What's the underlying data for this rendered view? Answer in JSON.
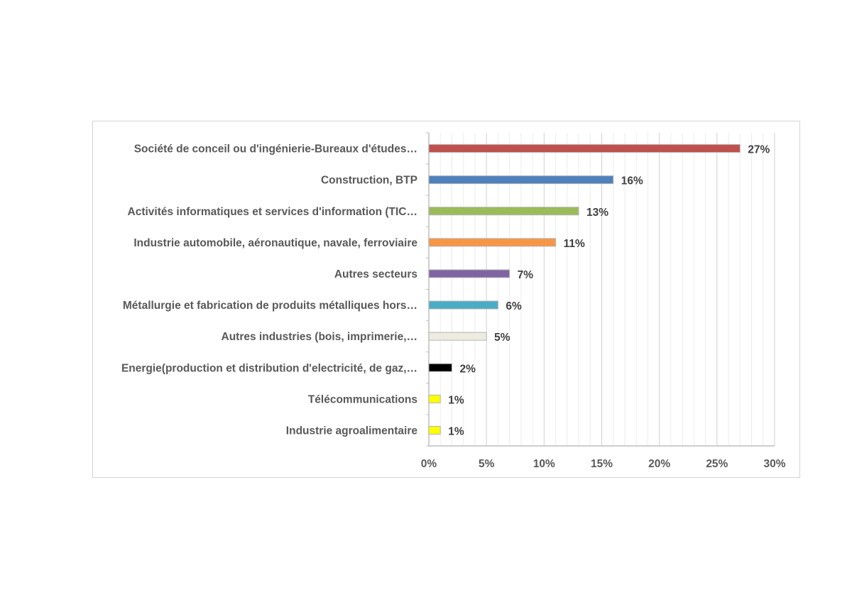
{
  "chart_data": {
    "type": "bar",
    "orientation": "horizontal",
    "title": "",
    "xlabel": "",
    "ylabel": "",
    "categories": [
      "Société de conceil ou d'ingénierie-Bureaux d'études…",
      "Construction, BTP",
      "Activités informatiques et services d'information (TIC…",
      "Industrie automobile, aéronautique, navale, ferroviaire",
      "Autres secteurs",
      "Métallurgie et fabrication de produits métalliques hors…",
      "Autres industries (bois, imprimerie,…",
      "Energie(production et distribution d'electricité, de gaz,…",
      "Télécommunications",
      "Industrie agroalimentaire"
    ],
    "values": [
      27,
      16,
      13,
      11,
      7,
      6,
      5,
      2,
      1,
      1
    ],
    "data_labels": [
      "27%",
      "16%",
      "13%",
      "11%",
      "7%",
      "6%",
      "5%",
      "2%",
      "1%",
      "1%"
    ],
    "colors": [
      "#c0504d",
      "#4f81bd",
      "#9bbb59",
      "#f79646",
      "#8064a2",
      "#4bacc6",
      "#eeece1",
      "#000000",
      "#ffff00",
      "#ffff00"
    ],
    "xlim": [
      0,
      30
    ],
    "x_ticks": [
      0,
      5,
      10,
      15,
      20,
      25,
      30
    ],
    "x_tick_labels": [
      "0%",
      "5%",
      "10%",
      "15%",
      "20%",
      "25%",
      "30%"
    ],
    "grid": true,
    "legend": "none"
  }
}
